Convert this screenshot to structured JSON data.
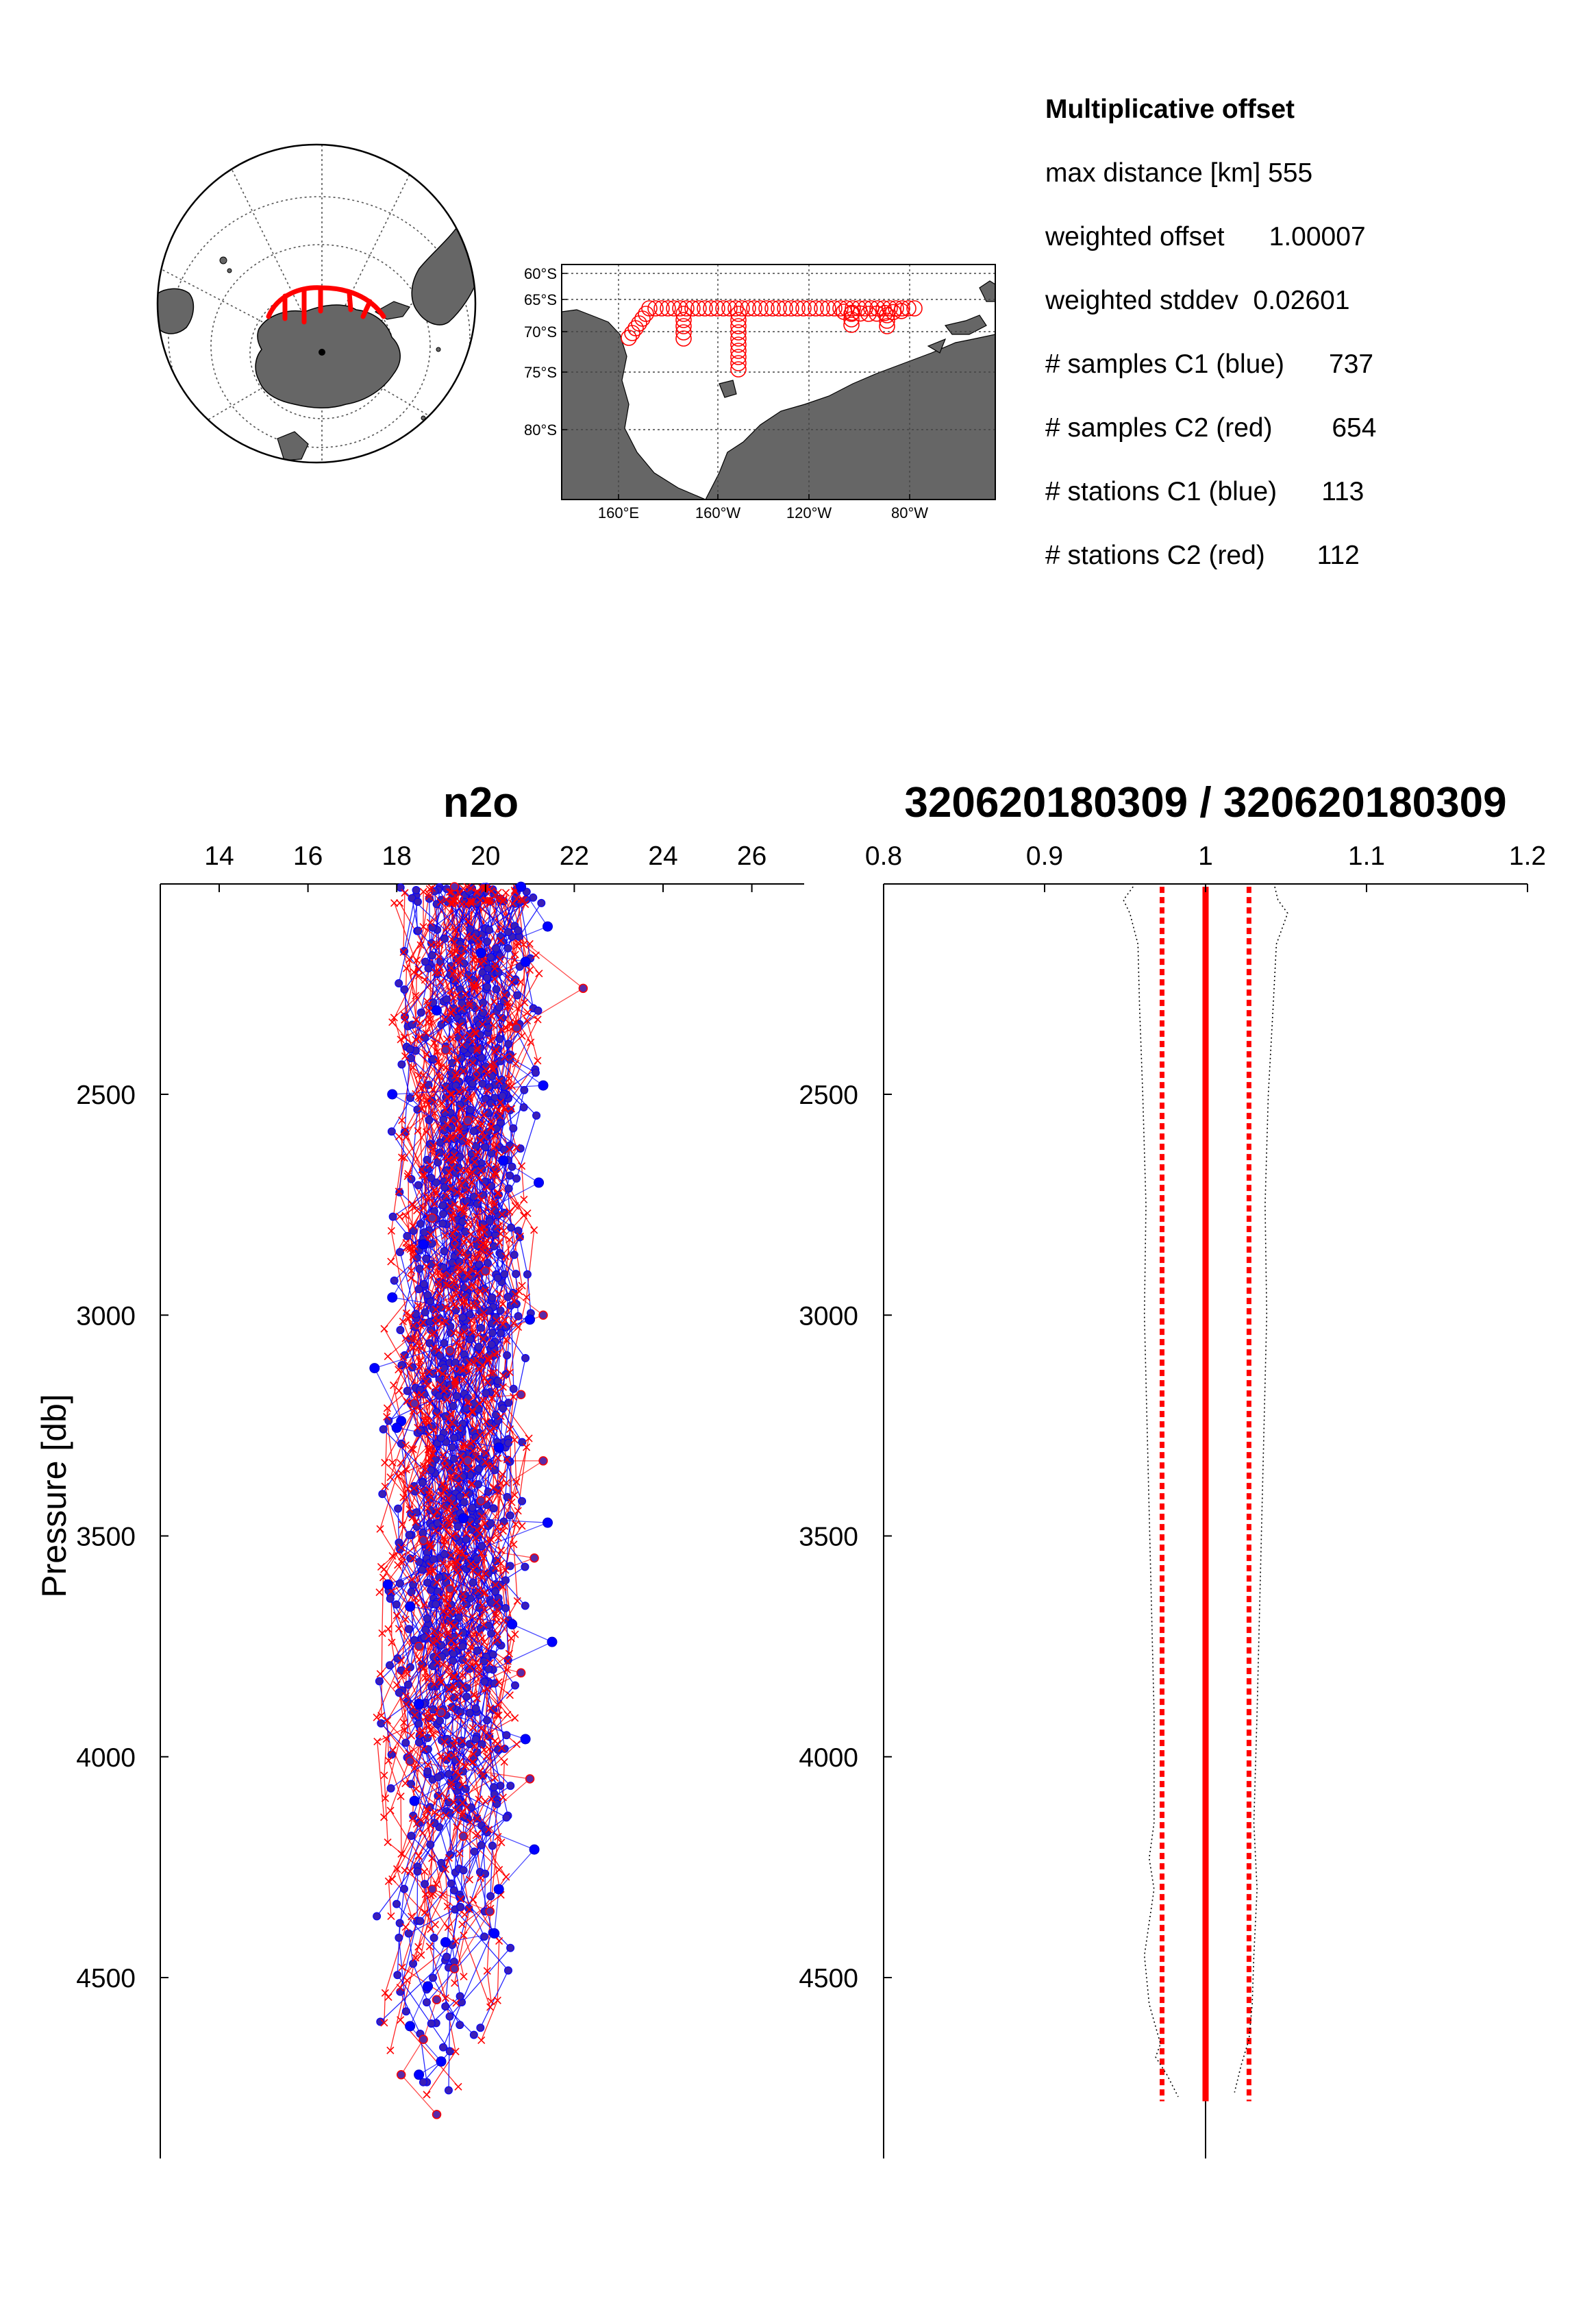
{
  "stats": {
    "title": "Multiplicative offset",
    "rows": [
      {
        "label": "max distance [km]",
        "value": "555"
      },
      {
        "label": "weighted offset",
        "value": "1.00007"
      },
      {
        "label": "weighted stddev",
        "value": "0.02601"
      },
      {
        "label": "# samples C1 (blue)",
        "value": "737"
      },
      {
        "label": "# samples C2 (red)",
        "value": "654"
      },
      {
        "label": "# stations C1 (blue)",
        "value": "113"
      },
      {
        "label": "# stations C2 (red)",
        "value": "112"
      }
    ]
  },
  "globe_map": {
    "track_color": "#ff0000",
    "land_color": "#666666"
  },
  "regional_map": {
    "lat_labels": [
      "60°S",
      "65°S",
      "70°S",
      "75°S",
      "80°S"
    ],
    "lon_labels": [
      "160°E",
      "160°W",
      "120°W",
      "80°W"
    ],
    "marker_color": "#ff0000",
    "land_color": "#666666"
  },
  "chart_data": [
    {
      "type": "line",
      "title": "n2o",
      "ylabel": "Pressure  [db]",
      "xlabel": "",
      "x_ticks": [
        "14",
        "16",
        "18",
        "20",
        "22",
        "24",
        "26"
      ],
      "y_ticks": [
        "2500",
        "3000",
        "3500",
        "4000",
        "4500"
      ],
      "xlim": [
        12.6,
        27.1
      ],
      "ylim": [
        2030,
        4870
      ],
      "y_reversed": true,
      "grid": false,
      "series": [
        {
          "name": "C1 (blue)",
          "color": "#0000ff",
          "marker": "circle",
          "sampled_points": [
            [
              20.8,
              2030
            ],
            [
              21.4,
              2120
            ],
            [
              20.9,
              2200
            ],
            [
              19.9,
              2180
            ],
            [
              18.9,
              2310
            ],
            [
              21.3,
              2480
            ],
            [
              17.9,
              2500
            ],
            [
              20.4,
              2650
            ],
            [
              21.2,
              2700
            ],
            [
              18.6,
              2840
            ],
            [
              17.9,
              2960
            ],
            [
              21.0,
              3010
            ],
            [
              17.5,
              3120
            ],
            [
              18.1,
              3240
            ],
            [
              18.0,
              3255
            ],
            [
              20.3,
              3300
            ],
            [
              19.5,
              3460
            ],
            [
              21.4,
              3470
            ],
            [
              17.8,
              3610
            ],
            [
              18.3,
              3660
            ],
            [
              20.6,
              3700
            ],
            [
              21.5,
              3740
            ],
            [
              18.5,
              3880
            ],
            [
              20.9,
              3960
            ],
            [
              18.4,
              4100
            ],
            [
              21.1,
              4210
            ],
            [
              20.3,
              4300
            ],
            [
              19.1,
              4420
            ],
            [
              20.2,
              4400
            ],
            [
              18.7,
              4520
            ],
            [
              18.3,
              4610
            ],
            [
              19.0,
              4690
            ],
            [
              18.5,
              4720
            ]
          ]
        },
        {
          "name": "C2 (red)",
          "color": "#ff0000",
          "marker": "x",
          "sampled_points": [
            [
              19.3,
              2030
            ],
            [
              22.2,
              2260
            ],
            [
              19.1,
              2400
            ],
            [
              20.7,
              2350
            ],
            [
              19.6,
              2560
            ],
            [
              18.8,
              2780
            ],
            [
              20.0,
              2900
            ],
            [
              21.3,
              3000
            ],
            [
              19.2,
              3080
            ],
            [
              18.4,
              3200
            ],
            [
              20.8,
              3180
            ],
            [
              19.6,
              3330
            ],
            [
              21.3,
              3330
            ],
            [
              19.9,
              3420
            ],
            [
              18.6,
              3510
            ],
            [
              21.1,
              3550
            ],
            [
              19.2,
              3620
            ],
            [
              18.5,
              3750
            ],
            [
              20.8,
              3810
            ],
            [
              19.0,
              3900
            ],
            [
              18.3,
              4010
            ],
            [
              21.0,
              4050
            ],
            [
              19.5,
              4180
            ],
            [
              18.8,
              4300
            ],
            [
              20.1,
              4350
            ],
            [
              19.3,
              4480
            ],
            [
              18.9,
              4550
            ],
            [
              18.6,
              4640
            ],
            [
              18.1,
              4720
            ],
            [
              18.9,
              4810
            ]
          ]
        }
      ]
    },
    {
      "type": "line",
      "title": "320620180309 / 320620180309",
      "xlabel": "",
      "ylabel": "",
      "x_ticks": [
        "0.8",
        "0.9",
        "1",
        "1.1",
        "1.2"
      ],
      "y_ticks": [
        "2500",
        "3000",
        "3500",
        "4000",
        "4500"
      ],
      "xlim": [
        0.8,
        1.2
      ],
      "ylim": [
        2030,
        4870
      ],
      "y_reversed": true,
      "grid": false,
      "series": [
        {
          "name": "",
          "color": "#ff0000",
          "style": "solid",
          "points": [
            [
              1.0,
              2030
            ],
            [
              1.0,
              4780
            ]
          ]
        },
        {
          "name": "",
          "color": "#ff0000",
          "style": "dotted",
          "points": [
            [
              0.973,
              2030
            ],
            [
              0.973,
              4780
            ]
          ]
        },
        {
          "name": "",
          "color": "#ff0000",
          "style": "dotted",
          "points": [
            [
              1.027,
              2030
            ],
            [
              1.027,
              4780
            ]
          ]
        },
        {
          "name": "",
          "color": "#000000",
          "style": "fine-dotted",
          "points": [
            [
              0.955,
              2030
            ],
            [
              0.949,
              2060
            ],
            [
              0.953,
              2090
            ],
            [
              0.958,
              2160
            ],
            [
              0.959,
              2300
            ],
            [
              0.961,
              2500
            ],
            [
              0.963,
              2750
            ],
            [
              0.962,
              3000
            ],
            [
              0.964,
              3300
            ],
            [
              0.966,
              3600
            ],
            [
              0.968,
              3900
            ],
            [
              0.968,
              4150
            ],
            [
              0.965,
              4230
            ],
            [
              0.968,
              4300
            ],
            [
              0.962,
              4450
            ],
            [
              0.965,
              4560
            ],
            [
              0.972,
              4650
            ],
            [
              0.969,
              4680
            ],
            [
              0.976,
              4720
            ],
            [
              0.983,
              4770
            ]
          ]
        },
        {
          "name": "",
          "color": "#000000",
          "style": "fine-dotted",
          "points": [
            [
              1.043,
              2030
            ],
            [
              1.045,
              2060
            ],
            [
              1.051,
              2090
            ],
            [
              1.044,
              2160
            ],
            [
              1.042,
              2300
            ],
            [
              1.039,
              2500
            ],
            [
              1.037,
              2750
            ],
            [
              1.038,
              3000
            ],
            [
              1.036,
              3300
            ],
            [
              1.034,
              3600
            ],
            [
              1.032,
              3900
            ],
            [
              1.03,
              4150
            ],
            [
              1.032,
              4300
            ],
            [
              1.03,
              4450
            ],
            [
              1.029,
              4560
            ],
            [
              1.027,
              4640
            ],
            [
              1.022,
              4700
            ],
            [
              1.018,
              4760
            ]
          ]
        }
      ]
    }
  ]
}
